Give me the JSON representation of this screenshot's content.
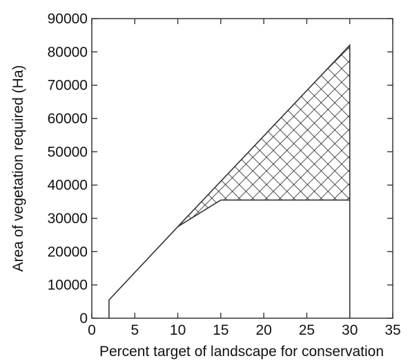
{
  "chart_data": {
    "type": "area",
    "title": "",
    "xlabel": "Percent target of landscape for conservation",
    "ylabel": "Area of vegetation required (Ha)",
    "xlim": [
      0,
      35
    ],
    "ylim": [
      0,
      90000
    ],
    "xticks": [
      0,
      5,
      10,
      15,
      20,
      25,
      30,
      35
    ],
    "yticks": [
      0,
      10000,
      20000,
      30000,
      40000,
      50000,
      60000,
      70000,
      80000,
      90000
    ],
    "grid": false,
    "series": [
      {
        "role": "upper-bound",
        "x": [
          2,
          2,
          10,
          30,
          30
        ],
        "y": [
          0,
          5500,
          27500,
          82000,
          0
        ]
      },
      {
        "role": "lower-bound",
        "x": [
          10,
          15,
          30
        ],
        "y": [
          27500,
          35500,
          35500
        ]
      }
    ],
    "shaded_region": {
      "fill": "crosshatch",
      "x": [
        10,
        15,
        30,
        30
      ],
      "y": [
        27500,
        35500,
        35500,
        82000
      ]
    },
    "colors": {
      "line": "#333333",
      "hatch": "#222222"
    }
  }
}
